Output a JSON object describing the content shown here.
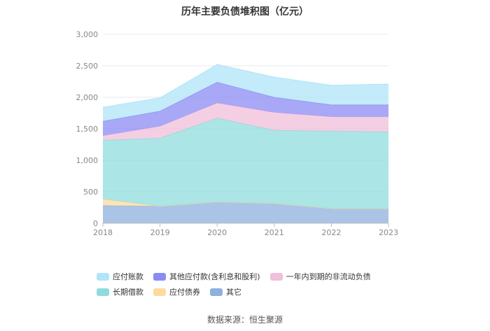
{
  "chart_data": {
    "type": "area",
    "stacked": true,
    "title": "历年主要负债堆积图（亿元）",
    "x": [
      "2018",
      "2019",
      "2020",
      "2021",
      "2022",
      "2023"
    ],
    "ylim": [
      0,
      3000
    ],
    "yticks": [
      "0",
      "500",
      "1,000",
      "1,500",
      "2,000",
      "2,500",
      "3,000"
    ],
    "grid": true,
    "legend_position": "bottom",
    "series": [
      {
        "name": "其它",
        "color": "#8eb0de",
        "values": [
          280,
          270,
          340,
          315,
          235,
          230
        ]
      },
      {
        "name": "应付债券",
        "color": "#fedb9c",
        "values": [
          100,
          0,
          0,
          0,
          0,
          0
        ]
      },
      {
        "name": "长期借款",
        "color": "#8fdcdc",
        "values": [
          940,
          1080,
          1330,
          1160,
          1230,
          1220
        ]
      },
      {
        "name": "一年内到期的非流动负债",
        "color": "#f0bfd9",
        "values": [
          70,
          190,
          240,
          285,
          225,
          240
        ]
      },
      {
        "name": "其他应付款(含利息和股利)",
        "color": "#8b8bf4",
        "values": [
          230,
          240,
          330,
          240,
          190,
          190
        ]
      },
      {
        "name": "应付账款",
        "color": "#b0e4f8",
        "values": [
          220,
          210,
          280,
          320,
          310,
          330
        ]
      }
    ],
    "legend_order": [
      "应付账款",
      "其他应付款(含利息和股利)",
      "一年内到期的非流动负债",
      "长期借款",
      "应付债券",
      "其它"
    ]
  },
  "source": "数据来源：恒生聚源"
}
